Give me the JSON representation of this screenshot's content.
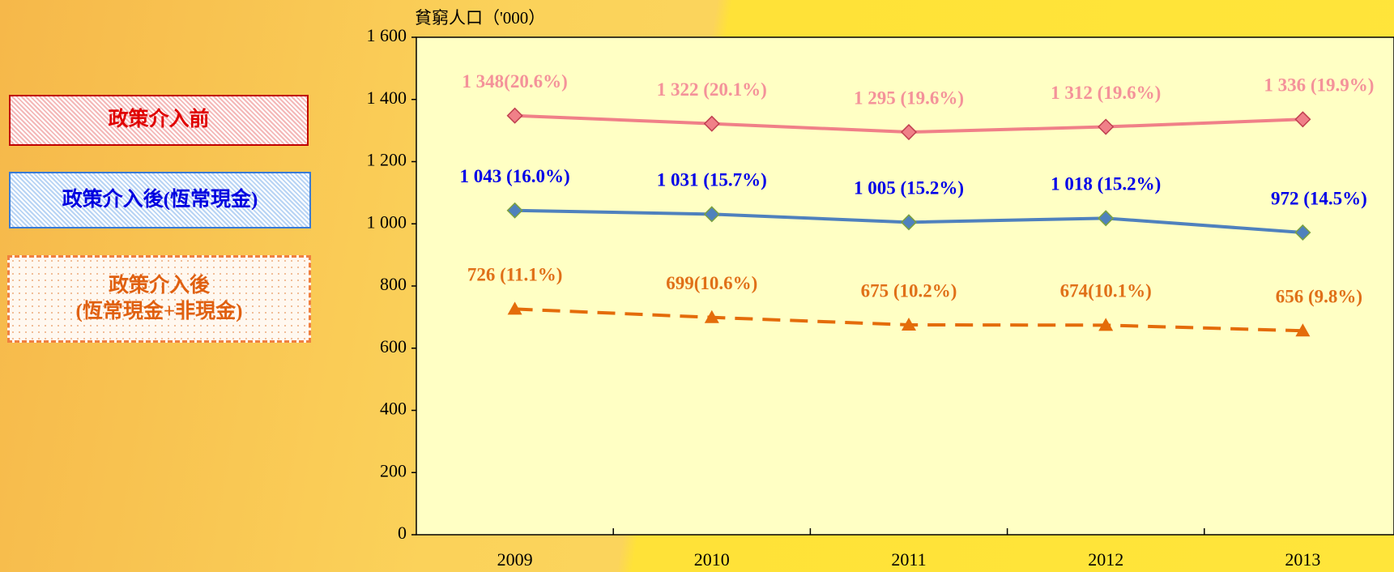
{
  "chart_data": {
    "type": "line",
    "y_label": "貧窮人口（'000）",
    "categories": [
      "2009",
      "2010",
      "2011",
      "2012",
      "2013"
    ],
    "series": [
      {
        "name": "政策介入前",
        "color": "#f08088",
        "label_color": "#f4929a",
        "marker": "diamond",
        "dashed": false,
        "values": [
          1348,
          1322,
          1295,
          1312,
          1336
        ],
        "value_labels": [
          "1 348(20.6%)",
          "1 322 (20.1%)",
          "1 295 (19.6%)",
          "1 312 (19.6%)",
          "1 336 (19.9%)"
        ]
      },
      {
        "name": "政策介入後(恆常現金)",
        "color": "#4f81bd",
        "label_color": "#0000e8",
        "marker": "diamond",
        "dashed": false,
        "values": [
          1043,
          1031,
          1005,
          1018,
          972
        ],
        "value_labels": [
          "1 043 (16.0%)",
          "1 031 (15.7%)",
          "1 005 (15.2%)",
          "1 018 (15.2%)",
          "972 (14.5%)"
        ]
      },
      {
        "name": "政策介入後\n(恆常現金+非現金)",
        "color": "#e46c0a",
        "label_color": "#e07018",
        "marker": "triangle",
        "dashed": true,
        "values": [
          726,
          699,
          675,
          674,
          656
        ],
        "value_labels": [
          "726 (11.1%)",
          "699(10.6%)",
          "675 (10.2%)",
          "674(10.1%)",
          "656 (9.8%)"
        ]
      }
    ],
    "ylim": [
      0,
      1600
    ],
    "yticks": [
      0,
      200,
      400,
      600,
      800,
      {
        "value": 1000,
        "label": "1 000"
      },
      {
        "value": 1200,
        "label": "1 200"
      },
      {
        "value": 1400,
        "label": "1 400"
      },
      {
        "value": 1600,
        "label": "1 600"
      }
    ],
    "grid": false
  }
}
